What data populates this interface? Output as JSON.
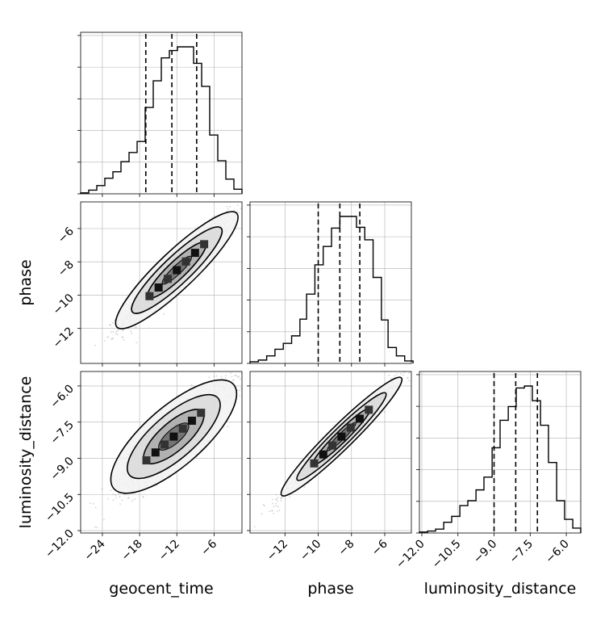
{
  "chart_data": {
    "type": "corner",
    "parameters": [
      "geocent_time",
      "phase",
      "luminosity_distance"
    ],
    "axis_labels": {
      "geocent_time": "geocent_time",
      "phase": "phase",
      "luminosity_distance": "luminosity_distance"
    },
    "ranges": {
      "geocent_time": [
        -27.5,
        -1.5
      ],
      "phase": [
        -14.1,
        -4.4
      ],
      "luminosity_distance": [
        -12.1,
        -5.4
      ]
    },
    "ticks": {
      "geocent_time": [
        "−24",
        "−18",
        "−12",
        "−6"
      ],
      "phase": [
        "−12",
        "−10",
        "−8",
        "−6"
      ],
      "luminosity_distance": [
        "−12.0",
        "−10.5",
        "−9.0",
        "−7.5",
        "−6.0"
      ]
    },
    "tick_values": {
      "geocent_time": [
        -24,
        -18,
        -12,
        -6
      ],
      "phase": [
        -12,
        -10,
        -8,
        -6
      ],
      "luminosity_distance": [
        -12.0,
        -10.5,
        -9.0,
        -7.5,
        -6.0
      ]
    },
    "histograms": {
      "geocent_time": {
        "bins": [
          -27.5,
          -26.2,
          -24.9,
          -23.6,
          -22.3,
          -21.0,
          -19.7,
          -18.4,
          -17.1,
          -15.8,
          -14.5,
          -13.2,
          -11.9,
          -10.6,
          -9.3,
          -8.0,
          -6.7,
          -5.4,
          -4.1,
          -2.8,
          -1.5
        ],
        "counts": [
          1,
          4,
          9,
          17,
          24,
          35,
          45,
          57,
          94,
          123,
          148,
          156,
          160,
          160,
          142,
          117,
          64,
          36,
          16,
          5
        ]
      },
      "phase": {
        "bins": [
          -14.1,
          -13.6,
          -13.1,
          -12.6,
          -12.1,
          -11.6,
          -11.1,
          -10.7,
          -10.2,
          -9.7,
          -9.2,
          -8.7,
          -8.2,
          -7.7,
          -7.2,
          -6.7,
          -6.2,
          -5.8,
          -5.3,
          -4.8,
          -4.3
        ],
        "counts": [
          2,
          4,
          9,
          17,
          24,
          33,
          53,
          83,
          118,
          140,
          162,
          176,
          176,
          163,
          148,
          103,
          52,
          19,
          9,
          3
        ]
      },
      "luminosity_distance": {
        "bins": [
          -12.1,
          -11.76,
          -11.43,
          -11.09,
          -10.76,
          -10.42,
          -10.09,
          -9.75,
          -9.42,
          -9.08,
          -8.75,
          -8.41,
          -8.08,
          -7.74,
          -7.41,
          -7.07,
          -6.74,
          -6.4,
          -6.07,
          -5.73,
          -5.4
        ],
        "counts": [
          1,
          2,
          4,
          11,
          17,
          28,
          33,
          44,
          57,
          87,
          115,
          129,
          148,
          150,
          135,
          110,
          72,
          33,
          14,
          5
        ]
      }
    },
    "quantiles": {
      "geocent_time": [
        -17.0,
        -12.8,
        -8.8
      ],
      "phase": [
        -10.0,
        -8.7,
        -7.5
      ],
      "luminosity_distance": [
        -9.0,
        -8.1,
        -7.2
      ]
    },
    "scatter_2d": {
      "phase_vs_geocent_time": {
        "x_mean": -12.0,
        "y_mean": -8.5,
        "correlation": 0.95
      },
      "luminosity_distance_vs_geocent_time": {
        "x_mean": -12.5,
        "y_mean": -8.1,
        "correlation": 0.87
      },
      "luminosity_distance_vs_phase": {
        "x_mean": -8.6,
        "y_mean": -8.1,
        "correlation": 0.98
      }
    },
    "grid": true,
    "colors": {
      "line": "#000000",
      "points": "#9e9e9e",
      "grid": "#b0b0b0"
    }
  }
}
